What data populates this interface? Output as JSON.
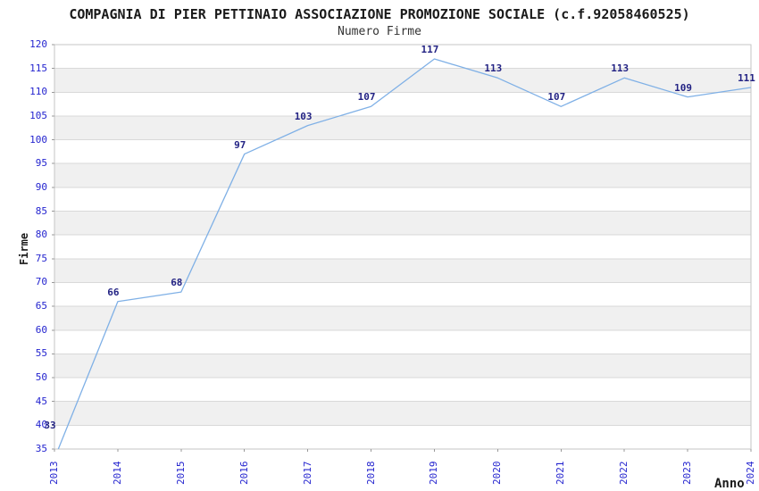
{
  "chart_data": {
    "type": "line",
    "title": "COMPAGNIA DI PIER PETTINAIO ASSOCIAZIONE PROMOZIONE SOCIALE (c.f.92058460525)",
    "subtitle": "Numero Firme",
    "xlabel": "Anno",
    "ylabel": "Firme",
    "categories": [
      "2013",
      "2014",
      "2015",
      "2016",
      "2017",
      "2018",
      "2019",
      "2020",
      "2021",
      "2022",
      "2023",
      "2024"
    ],
    "values": [
      33,
      66,
      68,
      97,
      103,
      107,
      117,
      113,
      107,
      113,
      109,
      111
    ],
    "ylim": [
      35,
      120
    ],
    "ytick_step": 5,
    "yticks": [
      35,
      40,
      45,
      50,
      55,
      60,
      65,
      70,
      75,
      80,
      85,
      90,
      95,
      100,
      105,
      110,
      115,
      120
    ],
    "grid": "horizontal",
    "legend": "none",
    "colors": {
      "line": "#7fb0e6",
      "tick_labels": "#2424cf",
      "value_labels": "#232384",
      "title": "#1a1a1a",
      "subtitle": "#333333",
      "band_fill": "#f0f0f0",
      "grid_line": "#d9d9d9",
      "plot_border": "#c6c6c6",
      "background": "#ffffff"
    }
  }
}
